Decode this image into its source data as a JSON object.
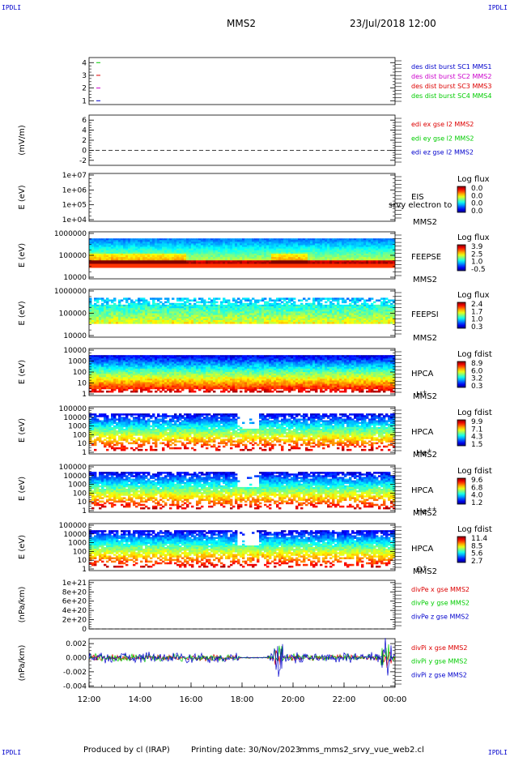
{
  "corners": {
    "tl": "IPDLI",
    "tr": "IPDLI",
    "bl": "IPDLI",
    "br": "IPDLI"
  },
  "header": {
    "title": "MMS2",
    "datetime": "23/Jul/2018 12:00"
  },
  "footer": {
    "produced": "Produced by cl (IRAP)",
    "printing": "Printing date: 30/Nov/2023",
    "script": "mms_mms2_srvy_vue_web2.cl"
  },
  "colors": {
    "red": "#dd0000",
    "green": "#00cc00",
    "blue": "#0000cc",
    "magenta": "#cc00cc"
  },
  "chart_data": {
    "type": "heatmap",
    "x_ticks": [
      "12:00",
      "14:00",
      "16:00",
      "18:00",
      "20:00",
      "22:00",
      "00:00"
    ],
    "xlim": [
      "12:00",
      "00:00"
    ],
    "panels": [
      {
        "id": "burst",
        "type": "line",
        "ylabel": "",
        "yticks": [
          "4",
          "3",
          "2",
          "1"
        ],
        "ylim": [
          0.7,
          4.4
        ],
        "legend": [
          {
            "text": "des dist burst SC1 MMS1",
            "color": "#0000cc"
          },
          {
            "text": "des dist burst SC2 MMS2",
            "color": "#cc00cc"
          },
          {
            "text": "des dist burst SC3 MMS3",
            "color": "#dd0000"
          },
          {
            "text": "des dist burst SC4 MMS4",
            "color": "#00cc00"
          }
        ],
        "markers": [
          {
            "y": 4,
            "color": "#00cc00"
          },
          {
            "y": 3,
            "color": "#dd0000"
          },
          {
            "y": 2,
            "color": "#cc00cc"
          },
          {
            "y": 1,
            "color": "#0000cc"
          }
        ]
      },
      {
        "id": "edi",
        "type": "line",
        "ylabel": "(mV/m)",
        "yticks": [
          "6",
          "4",
          "2",
          "0",
          "-2"
        ],
        "ylim": [
          -3,
          7
        ],
        "legend": [
          {
            "text": "edi ex gse l2 MMS2",
            "color": "#dd0000"
          },
          {
            "text": "edi ey gse l2 MMS2",
            "color": "#00cc00"
          },
          {
            "text": "edi ez gse l2 MMS2",
            "color": "#0000cc"
          }
        ],
        "zero_line": true
      },
      {
        "id": "eis",
        "type": "heatmap",
        "ylabel": "E (eV)",
        "yticks": [
          "1e+07",
          "1e+06",
          "1e+05",
          "1e+04"
        ],
        "right_labels": [
          "EIS",
          "MMS2"
        ],
        "overlay_text": "srvy electron to",
        "colorbar_title": "Log flux",
        "colorbar_ticks": [
          "0.0",
          "0.0",
          "0.0",
          "0.0"
        ],
        "empty": true
      },
      {
        "id": "feepse",
        "type": "heatmap",
        "ylabel": "E (eV)",
        "yticks": [
          "1000000",
          "100000",
          "10000"
        ],
        "right_labels": [
          "FEEPSE",
          "MMS2"
        ],
        "colorbar_title": "Log flux",
        "colorbar_ticks": [
          "3.9",
          "2.5",
          "1.0",
          "-0.5"
        ]
      },
      {
        "id": "feepsi",
        "type": "heatmap",
        "ylabel": "E (eV)",
        "yticks": [
          "1000000",
          "100000",
          "10000"
        ],
        "right_labels": [
          "FEEPSI",
          "MMS2"
        ],
        "colorbar_title": "Log flux",
        "colorbar_ticks": [
          "2.4",
          "1.7",
          "1.0",
          "0.3"
        ]
      },
      {
        "id": "hpca_h",
        "type": "heatmap",
        "ylabel": "E (eV)",
        "yticks": [
          "10000",
          "1000",
          "100",
          "10",
          "1"
        ],
        "right_labels": [
          "HPCA",
          "MMS2"
        ],
        "species": "H",
        "species_sup": "+",
        "colorbar_title": "Log fdist",
        "colorbar_ticks": [
          "8.9",
          "6.0",
          "3.2",
          "0.3"
        ]
      },
      {
        "id": "hpca_he",
        "type": "heatmap",
        "ylabel": "E (eV)",
        "yticks": [
          "100000",
          "10000",
          "1000",
          "100",
          "10",
          "1"
        ],
        "right_labels": [
          "HPCA",
          "MMS2"
        ],
        "species": "He",
        "species_sup": "+",
        "colorbar_title": "Log fdist",
        "colorbar_ticks": [
          "9.9",
          "7.1",
          "4.3",
          "1.5"
        ]
      },
      {
        "id": "hpca_hepp",
        "type": "heatmap",
        "ylabel": "E (eV)",
        "yticks": [
          "100000",
          "10000",
          "1000",
          "100",
          "10",
          "1"
        ],
        "right_labels": [
          "HPCA",
          "MMS2"
        ],
        "species": "He",
        "species_sup": "++",
        "colorbar_title": "Log fdist",
        "colorbar_ticks": [
          "9.6",
          "6.8",
          "4.0",
          "1.2"
        ]
      },
      {
        "id": "hpca_o",
        "type": "heatmap",
        "ylabel": "E (eV)",
        "yticks": [
          "100000",
          "10000",
          "1000",
          "100",
          "10",
          "1"
        ],
        "right_labels": [
          "HPCA",
          "MMS2"
        ],
        "species": "O",
        "species_sup": "+",
        "colorbar_title": "Log fdist",
        "colorbar_ticks": [
          "11.4",
          "8.5",
          "5.6",
          "2.7"
        ]
      },
      {
        "id": "divpe",
        "type": "line",
        "ylabel": "(nPa/km)",
        "yticks": [
          "1e+21",
          "8e+20",
          "6e+20",
          "4e+20",
          "2e+20",
          "0"
        ],
        "ylim": [
          0,
          1.05e+21
        ],
        "legend": [
          {
            "text": "divPe x gse MMS2",
            "color": "#dd0000"
          },
          {
            "text": "divPe y gse MMS2",
            "color": "#00cc00"
          },
          {
            "text": "divPe z gse MMS2",
            "color": "#0000cc"
          }
        ],
        "zero_line": true
      },
      {
        "id": "divpi",
        "type": "line",
        "ylabel": "(nPa/km)",
        "yticks": [
          "0.002",
          "0.000",
          "-0.002",
          "-0.004"
        ],
        "ylim": [
          -0.0042,
          0.0027
        ],
        "legend": [
          {
            "text": "divPi x gse MMS2",
            "color": "#dd0000"
          },
          {
            "text": "divPi y gse MMS2",
            "color": "#00cc00"
          },
          {
            "text": "divPi z gse MMS2",
            "color": "#0000cc"
          }
        ]
      }
    ]
  }
}
